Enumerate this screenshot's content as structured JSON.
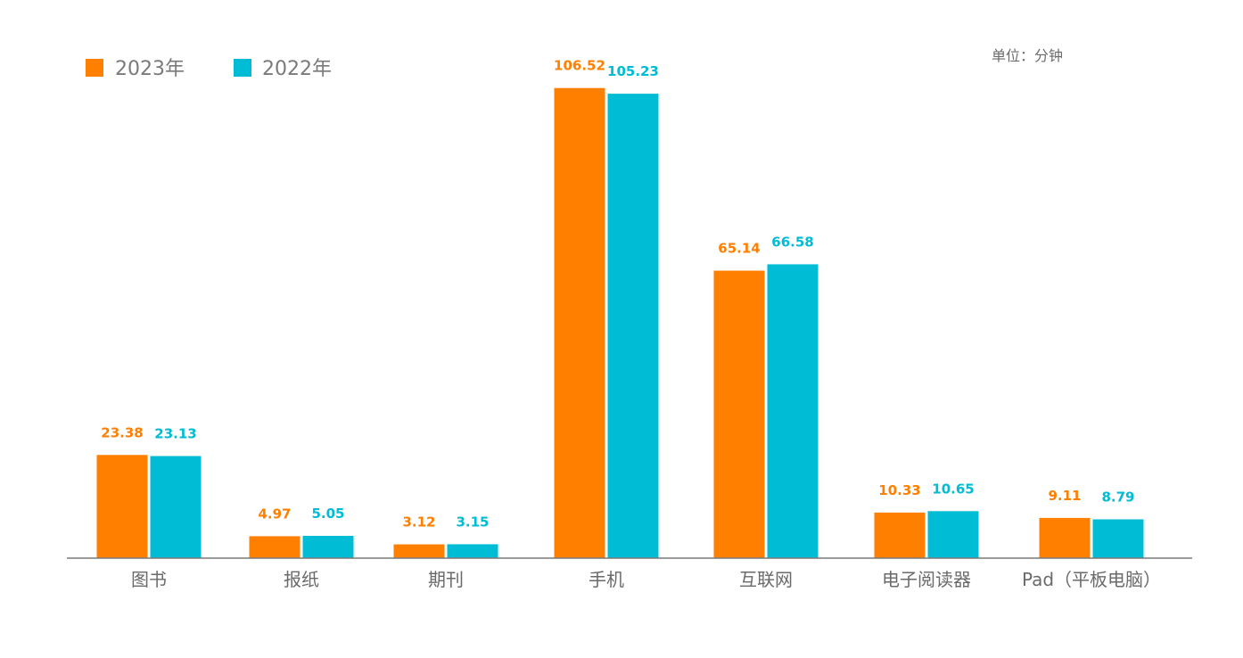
{
  "unit_label": "单位：分钟",
  "colors": {
    "2023": "#FF7F00",
    "2022": "#00BCD4"
  },
  "chart_data": {
    "type": "bar",
    "categories": [
      "图书",
      "报纸",
      "期刊",
      "手机",
      "互联网",
      "电子阅读器",
      "Pad（平板电脑）"
    ],
    "series": [
      {
        "name": "2023年",
        "values": [
          23.38,
          4.97,
          3.12,
          106.52,
          65.14,
          10.33,
          9.11
        ]
      },
      {
        "name": "2022年",
        "values": [
          23.13,
          5.05,
          3.15,
          105.23,
          66.58,
          10.65,
          8.79
        ]
      }
    ],
    "value_labels": [
      [
        "23.38",
        "4.97",
        "3.12",
        "106.52",
        "65.14",
        "10.33",
        "9.11"
      ],
      [
        "23.13",
        "5.05",
        "3.15",
        "105.23",
        "66.58",
        "10.65",
        "8.79"
      ]
    ],
    "legend_position": "top-left",
    "grid": false
  }
}
